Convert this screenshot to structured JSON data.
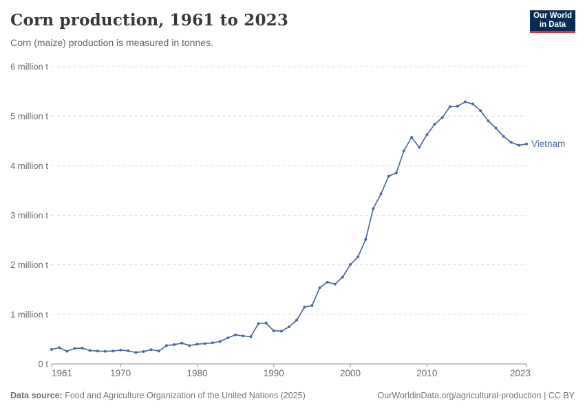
{
  "header": {
    "title": "Corn production, 1961 to 2023",
    "subtitle": "Corn (maize) production is measured in tonnes.",
    "logo": {
      "line1": "Our World",
      "line2": "in Data",
      "bg_color": "#072b52",
      "bar_color": "#dc352c"
    }
  },
  "chart_data": {
    "type": "line",
    "title": "Corn production, 1961 to 2023",
    "unit": "tonnes",
    "xlabel": "",
    "ylabel": "",
    "xlim": [
      1961,
      2023
    ],
    "ylim": [
      0,
      6000000
    ],
    "grid": "horizontal-dashed",
    "legend_position": "end-of-line-label",
    "x_ticks": [
      1961,
      1970,
      1980,
      1990,
      2000,
      2010,
      2023
    ],
    "y_ticks": [
      {
        "value": 0,
        "label": "0 t"
      },
      {
        "value": 1000000,
        "label": "1 million t"
      },
      {
        "value": 2000000,
        "label": "2 million t"
      },
      {
        "value": 3000000,
        "label": "3 million t"
      },
      {
        "value": 4000000,
        "label": "4 million t"
      },
      {
        "value": 5000000,
        "label": "5 million t"
      },
      {
        "value": 6000000,
        "label": "6 million t"
      }
    ],
    "series": [
      {
        "name": "Vietnam",
        "color": "#4c6a9c",
        "years": [
          1961,
          1962,
          1963,
          1964,
          1965,
          1966,
          1967,
          1968,
          1969,
          1970,
          1971,
          1972,
          1973,
          1974,
          1975,
          1976,
          1977,
          1978,
          1979,
          1980,
          1981,
          1982,
          1983,
          1984,
          1985,
          1986,
          1987,
          1988,
          1989,
          1990,
          1991,
          1992,
          1993,
          1994,
          1995,
          1996,
          1997,
          1998,
          1999,
          2000,
          2001,
          2002,
          2003,
          2004,
          2005,
          2006,
          2007,
          2008,
          2009,
          2010,
          2011,
          2012,
          2013,
          2014,
          2015,
          2016,
          2017,
          2018,
          2019,
          2020,
          2021,
          2022,
          2023
        ],
        "values": [
          292200,
          328900,
          255900,
          311400,
          318900,
          271500,
          259400,
          254800,
          260900,
          279900,
          264900,
          231200,
          249400,
          288300,
          261000,
          370000,
          390000,
          420000,
          370000,
          400000,
          410000,
          425000,
          455000,
          525000,
          587100,
          565000,
          550000,
          815000,
          825000,
          671000,
          662000,
          747900,
          882200,
          1143900,
          1177200,
          1536700,
          1650600,
          1612000,
          1753100,
          2005900,
          2161700,
          2511200,
          3136300,
          3430900,
          3787100,
          3854600,
          4303200,
          4573100,
          4371700,
          4625700,
          4835700,
          4973600,
          5191200,
          5202300,
          5287200,
          5246500,
          5109600,
          4905900,
          4760100,
          4591800,
          4472100,
          4412000,
          4440000
        ]
      }
    ],
    "style": {
      "grid_color": "#d9d9d9",
      "axis_color": "#8f8f8f",
      "tick_text_color": "#6b6b6b",
      "marker_radius": 2
    }
  },
  "footer": {
    "source_label": "Data source:",
    "source_text": "Food and Agriculture Organization of the United Nations (2025)",
    "credit": "OurWorldinData.org/agricultural-production | CC BY"
  }
}
